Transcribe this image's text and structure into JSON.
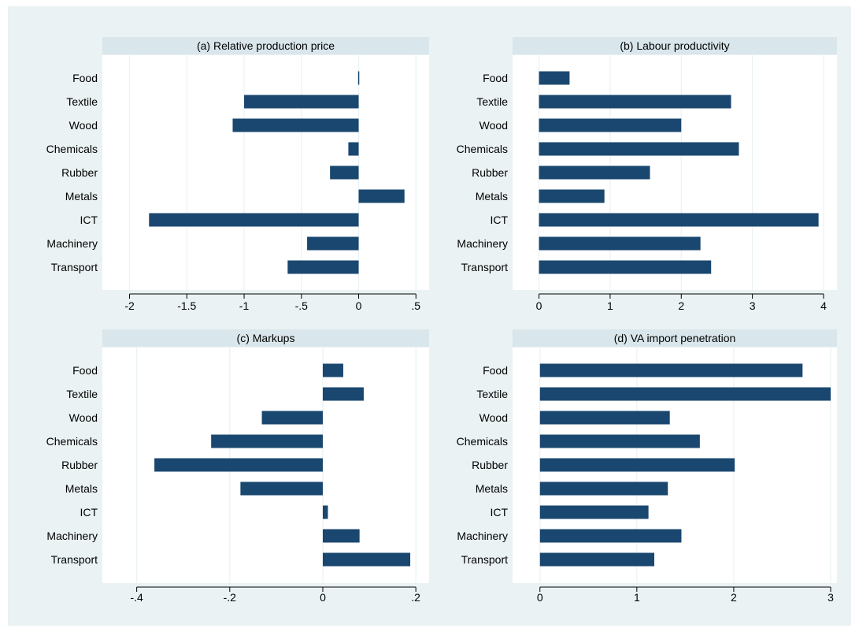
{
  "chart_data": [
    {
      "type": "bar",
      "orientation": "horizontal",
      "title": "(a) Relative production price",
      "categories": [
        "Food",
        "Textile",
        "Wood",
        "Chemicals",
        "Rubber",
        "Metals",
        "ICT",
        "Machinery",
        "Transport"
      ],
      "values": [
        -0.005,
        -1.0,
        -1.1,
        -0.09,
        -0.25,
        0.4,
        -1.83,
        -0.45,
        -0.62
      ],
      "xlim": [
        -2.1,
        0.56
      ],
      "xticks": [
        -2,
        -1.5,
        -1,
        -0.5,
        0,
        0.5
      ],
      "xtick_labels": [
        "-2",
        "-1.5",
        "-1",
        "-.5",
        "0",
        ".5"
      ],
      "grid": true
    },
    {
      "type": "bar",
      "orientation": "horizontal",
      "title": "(b) Labour productivity",
      "categories": [
        "Food",
        "Textile",
        "Wood",
        "Chemicals",
        "Rubber",
        "Metals",
        "ICT",
        "Machinery",
        "Transport"
      ],
      "values": [
        0.43,
        2.7,
        2.0,
        2.81,
        1.56,
        0.92,
        3.93,
        2.27,
        2.42
      ],
      "xlim": [
        -0.15,
        4.1
      ],
      "xticks": [
        0,
        1,
        2,
        3,
        4
      ],
      "xtick_labels": [
        "0",
        "1",
        "2",
        "3",
        "4"
      ],
      "grid": true
    },
    {
      "type": "bar",
      "orientation": "horizontal",
      "title": "(c) Markups",
      "categories": [
        "Food",
        "Textile",
        "Wood",
        "Chemicals",
        "Rubber",
        "Metals",
        "ICT",
        "Machinery",
        "Transport"
      ],
      "values": [
        0.044,
        0.088,
        -0.131,
        -0.24,
        -0.362,
        -0.177,
        0.011,
        0.079,
        0.188
      ],
      "xlim": [
        -0.44,
        0.215
      ],
      "xticks": [
        -0.4,
        -0.2,
        0,
        0.2
      ],
      "xtick_labels": [
        "-.4",
        "-.2",
        "0",
        ".2"
      ],
      "grid": true
    },
    {
      "type": "bar",
      "orientation": "horizontal",
      "title": "(d) VA import penetration",
      "categories": [
        "Food",
        "Textile",
        "Wood",
        "Chemicals",
        "Rubber",
        "Metals",
        "ICT",
        "Machinery",
        "Transport"
      ],
      "values": [
        2.71,
        3.0,
        1.34,
        1.65,
        2.01,
        1.32,
        1.12,
        1.46,
        1.18
      ],
      "xlim": [
        -0.12,
        3.0
      ],
      "xticks": [
        0,
        1,
        2,
        3
      ],
      "xtick_labels": [
        "0",
        "1",
        "2",
        "3"
      ],
      "grid": true
    }
  ],
  "colors": {
    "bar": "#1a476f",
    "panel_title_bg": "#d9e6eb",
    "figure_bg": "#eaf2f3",
    "plot_bg": "#ffffff",
    "grid": "#eaf2f3",
    "axis": "#000000",
    "text": "#000000"
  }
}
